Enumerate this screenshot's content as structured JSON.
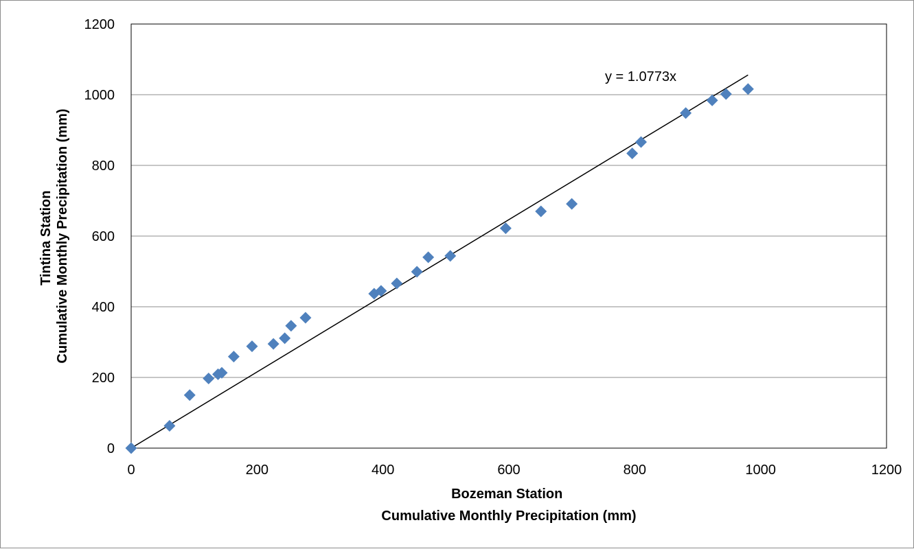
{
  "chart_data": {
    "type": "scatter",
    "title": "",
    "xlabel": [
      "Bozeman Station",
      "Cumulative Monthly Precipitation (mm)"
    ],
    "ylabel": [
      "Tintina Station",
      "Cumulative Monthly Precipitation (mm)"
    ],
    "xlim": [
      0,
      1200
    ],
    "ylim": [
      0,
      1200
    ],
    "x_ticks": [
      0,
      200,
      400,
      600,
      800,
      1000,
      1200
    ],
    "y_ticks": [
      0,
      200,
      400,
      600,
      800,
      1000,
      1200
    ],
    "x_tick_labels": [
      "0",
      "200",
      "400",
      "600",
      "800",
      "1000",
      "1200"
    ],
    "y_tick_labels": [
      "0",
      "200",
      "400",
      "600",
      "800",
      "1000",
      "1200"
    ],
    "grid": "horizontal",
    "legend": "none",
    "marker": "diamond",
    "series": [
      {
        "color": "#4f81bd",
        "x": [
          0,
          61,
          93,
          123,
          138,
          144,
          163,
          192,
          226,
          244,
          254,
          277,
          386,
          397,
          422,
          454,
          472,
          507,
          595,
          651,
          700,
          796,
          810,
          881,
          923,
          945,
          980
        ],
        "y": [
          0,
          63,
          150,
          197,
          209,
          213,
          259,
          288,
          295,
          311,
          346,
          369,
          437,
          445,
          466,
          499,
          540,
          544,
          622,
          670,
          691,
          834,
          866,
          948,
          984,
          1002,
          1016
        ]
      }
    ],
    "trendline": {
      "type": "linear-through-origin",
      "slope": 1.0773,
      "x_range": [
        0,
        980
      ],
      "equation_label": "y = 1.0773x",
      "color": "#000000"
    }
  }
}
